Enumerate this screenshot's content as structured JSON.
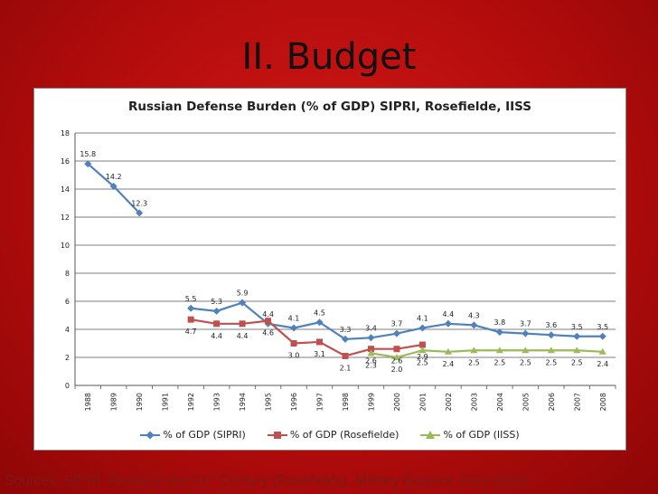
{
  "slide": {
    "title": "II. Budget",
    "sources_before": "Sources: SIPRI, Russia in the 21",
    "sources_sup": "st",
    "sources_after": " Century (Rosefields), Military Balance 2010 (IISS)"
  },
  "colors": {
    "background": "#c01010",
    "sipri": "#4f81bd",
    "rosefielde": "#c0504d",
    "iiss": "#9bbb59",
    "grid": "#555555"
  },
  "chart_data": {
    "type": "line",
    "title": "Russian Defense Burden (% of GDP)    SIPRI, Rosefielde, IISS",
    "xlabel": "",
    "ylabel": "",
    "ylim": [
      0,
      18
    ],
    "yticks": [
      0,
      2,
      4,
      6,
      8,
      10,
      12,
      14,
      16,
      18
    ],
    "grid": true,
    "legend_position": "bottom",
    "x": [
      "1988",
      "1989",
      "1990",
      "1991",
      "1992",
      "1993",
      "1994",
      "1995",
      "1996",
      "1997",
      "1998",
      "1999",
      "2000",
      "2001",
      "2002",
      "2003",
      "2004",
      "2005",
      "2006",
      "2007",
      "2008"
    ],
    "series": [
      {
        "name": "% of GDP (SIPRI)",
        "color": "#4f81bd",
        "marker": "diamond",
        "values": [
          15.8,
          14.2,
          12.3,
          null,
          5.5,
          5.3,
          5.9,
          4.4,
          4.1,
          4.5,
          3.3,
          3.4,
          3.7,
          4.1,
          4.4,
          4.3,
          3.8,
          3.7,
          3.6,
          3.5,
          3.5
        ]
      },
      {
        "name": "% of GDP (Rosefielde)",
        "color": "#c0504d",
        "marker": "square",
        "values": [
          null,
          null,
          null,
          null,
          4.7,
          4.4,
          4.4,
          4.6,
          3.0,
          3.1,
          2.1,
          2.6,
          2.6,
          2.9,
          null,
          null,
          null,
          null,
          null,
          null,
          null
        ]
      },
      {
        "name": "% of GDP (IISS)",
        "color": "#9bbb59",
        "marker": "triangle",
        "values": [
          null,
          null,
          null,
          null,
          null,
          null,
          null,
          null,
          null,
          null,
          null,
          2.3,
          2.0,
          2.5,
          2.4,
          2.5,
          2.5,
          2.5,
          2.5,
          2.5,
          2.4
        ]
      }
    ],
    "data_labels": [
      {
        "x": "1988",
        "y": 15.8,
        "text": "15.8",
        "pos": "above"
      },
      {
        "x": "1989",
        "y": 14.2,
        "text": "14.2",
        "pos": "above"
      },
      {
        "x": "1990",
        "y": 12.3,
        "text": "12.3",
        "pos": "above"
      },
      {
        "x": "1992",
        "y": 5.5,
        "text": "5.5",
        "pos": "above"
      },
      {
        "x": "1993",
        "y": 5.3,
        "text": "5.3",
        "pos": "above"
      },
      {
        "x": "1994",
        "y": 5.9,
        "text": "5.9",
        "pos": "above"
      },
      {
        "x": "1995",
        "y": 4.4,
        "text": "4.4",
        "pos": "above"
      },
      {
        "x": "1996",
        "y": 4.1,
        "text": "4.1",
        "pos": "above"
      },
      {
        "x": "1997",
        "y": 4.5,
        "text": "4.5",
        "pos": "above"
      },
      {
        "x": "1998",
        "y": 3.3,
        "text": "3.3",
        "pos": "above"
      },
      {
        "x": "1999",
        "y": 3.4,
        "text": "3.4",
        "pos": "above"
      },
      {
        "x": "2000",
        "y": 3.7,
        "text": "3.7",
        "pos": "above"
      },
      {
        "x": "2001",
        "y": 4.1,
        "text": "4.1",
        "pos": "above"
      },
      {
        "x": "2002",
        "y": 4.4,
        "text": "4.4",
        "pos": "above"
      },
      {
        "x": "2003",
        "y": 4.3,
        "text": "4.3",
        "pos": "above"
      },
      {
        "x": "2004",
        "y": 3.8,
        "text": "3.8",
        "pos": "above"
      },
      {
        "x": "2005",
        "y": 3.7,
        "text": "3.7",
        "pos": "above"
      },
      {
        "x": "2006",
        "y": 3.6,
        "text": "3.6",
        "pos": "above"
      },
      {
        "x": "2007",
        "y": 3.5,
        "text": "3.5",
        "pos": "above"
      },
      {
        "x": "2008",
        "y": 3.5,
        "text": "3.5",
        "pos": "above"
      },
      {
        "x": "1992",
        "y": 4.7,
        "text": "4.7",
        "pos": "below"
      },
      {
        "x": "1993",
        "y": 4.4,
        "text": "4.4",
        "pos": "below"
      },
      {
        "x": "1994",
        "y": 4.4,
        "text": "4.4",
        "pos": "below"
      },
      {
        "x": "1995",
        "y": 4.6,
        "text": "4.6",
        "pos": "below"
      },
      {
        "x": "1996",
        "y": 3.0,
        "text": "3.0",
        "pos": "below"
      },
      {
        "x": "1997",
        "y": 3.1,
        "text": "3.1",
        "pos": "below"
      },
      {
        "x": "1998",
        "y": 2.1,
        "text": "2.1",
        "pos": "below"
      },
      {
        "x": "1999",
        "y": 2.6,
        "text": "2.6",
        "pos": "below"
      },
      {
        "x": "2000",
        "y": 2.6,
        "text": "2.6",
        "pos": "below"
      },
      {
        "x": "2001",
        "y": 2.9,
        "text": "2.9",
        "pos": "below"
      },
      {
        "x": "1999",
        "y": 2.3,
        "text": "2.3",
        "pos": "below"
      },
      {
        "x": "2000",
        "y": 2.0,
        "text": "2.0",
        "pos": "below"
      },
      {
        "x": "2001",
        "y": 2.5,
        "text": "2.5",
        "pos": "below"
      },
      {
        "x": "2002",
        "y": 2.4,
        "text": "2.4",
        "pos": "below"
      },
      {
        "x": "2003",
        "y": 2.5,
        "text": "2.5",
        "pos": "below"
      },
      {
        "x": "2004",
        "y": 2.5,
        "text": "2.5",
        "pos": "below"
      },
      {
        "x": "2005",
        "y": 2.5,
        "text": "2.5",
        "pos": "below"
      },
      {
        "x": "2006",
        "y": 2.5,
        "text": "2.5",
        "pos": "below"
      },
      {
        "x": "2007",
        "y": 2.5,
        "text": "2.5",
        "pos": "below"
      },
      {
        "x": "2008",
        "y": 2.4,
        "text": "2.4",
        "pos": "below"
      }
    ]
  }
}
